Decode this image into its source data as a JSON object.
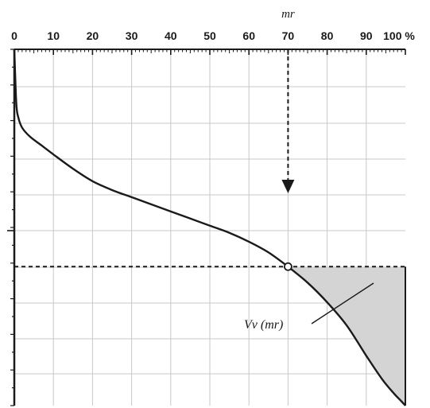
{
  "chart_data": {
    "type": "line",
    "title": "",
    "xlabel": "mr",
    "ylabel": "",
    "x_ticks": [
      "0",
      "10",
      "20",
      "30",
      "40",
      "50",
      "60",
      "70",
      "80",
      "90",
      "100 %"
    ],
    "xlim": [
      0,
      100
    ],
    "grid": true,
    "x_axis_position": "top",
    "series": [
      {
        "values": [
          {
            "x": 0,
            "y": 1.0
          },
          {
            "x": 0.5,
            "y": 0.85
          },
          {
            "x": 1.0,
            "y": 0.81
          },
          {
            "x": 2,
            "y": 0.78
          },
          {
            "x": 4,
            "y": 0.755
          },
          {
            "x": 7,
            "y": 0.73
          },
          {
            "x": 10,
            "y": 0.705
          },
          {
            "x": 15,
            "y": 0.665
          },
          {
            "x": 20,
            "y": 0.63
          },
          {
            "x": 25,
            "y": 0.605
          },
          {
            "x": 30,
            "y": 0.585
          },
          {
            "x": 35,
            "y": 0.565
          },
          {
            "x": 40,
            "y": 0.545
          },
          {
            "x": 45,
            "y": 0.525
          },
          {
            "x": 50,
            "y": 0.505
          },
          {
            "x": 55,
            "y": 0.485
          },
          {
            "x": 60,
            "y": 0.46
          },
          {
            "x": 65,
            "y": 0.43
          },
          {
            "x": 70,
            "y": 0.39
          },
          {
            "x": 75,
            "y": 0.345
          },
          {
            "x": 80,
            "y": 0.29
          },
          {
            "x": 85,
            "y": 0.225
          },
          {
            "x": 90,
            "y": 0.14
          },
          {
            "x": 94,
            "y": 0.075
          },
          {
            "x": 97,
            "y": 0.035
          },
          {
            "x": 99,
            "y": 0.012
          },
          {
            "x": 100,
            "y": 0.0
          }
        ]
      }
    ],
    "marker": {
      "x": 70,
      "y": 0.39
    },
    "annotations": [
      {
        "text": "Vv (mr)"
      }
    ]
  }
}
